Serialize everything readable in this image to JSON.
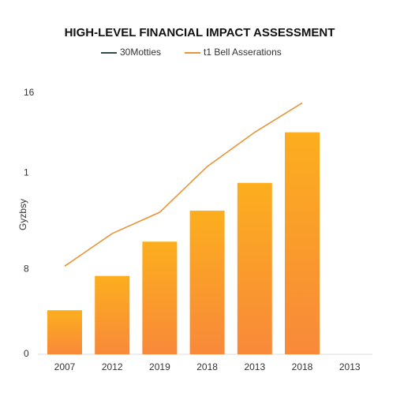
{
  "chart_data": {
    "type": "bar-line",
    "title": "HIGH-LEVEL FINANCIAL IMPACT ASSESSMENT",
    "y_label": "Gyzbsy",
    "categories": [
      "2007",
      "2012",
      "2019",
      "2018",
      "2013",
      "2018",
      "2013"
    ],
    "series": [
      {
        "name": "30Motties",
        "type": "bar",
        "color": "#2e4a4a",
        "fill": [
          "#fcae1e",
          "#f8893a"
        ],
        "values": [
          2.7,
          4.8,
          6.9,
          8.8,
          10.5,
          13.6,
          null
        ]
      },
      {
        "name": "t1 Bell Asserations",
        "type": "line",
        "color": "#e8953a",
        "values": [
          5.4,
          7.4,
          8.7,
          11.5,
          13.6,
          15.4,
          null
        ]
      }
    ],
    "ylim": [
      0,
      16
    ],
    "yticks": [
      0,
      {
        "value": 5.2,
        "label": "8"
      },
      {
        "value": 11.1,
        "label": "1"
      },
      16
    ],
    "grid": false
  }
}
